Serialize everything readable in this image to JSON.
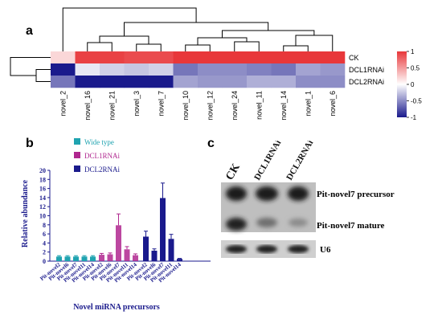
{
  "panels": {
    "a": "a",
    "b": "b",
    "c": "c"
  },
  "heatmap": {
    "columns": [
      "novel_2",
      "novel_16",
      "novel_21",
      "novel_3",
      "novel_7",
      "novel_10",
      "novel_12",
      "novel_24",
      "novel_11",
      "novel_14",
      "novel_1",
      "novel_6"
    ],
    "rows": [
      "CK",
      "DCL1RNAi",
      "DCL2RNAi"
    ],
    "values": [
      [
        0.2,
        0.95,
        0.95,
        0.9,
        0.9,
        1.0,
        1.0,
        1.0,
        1.0,
        1.0,
        1.0,
        1.0
      ],
      [
        -1.0,
        -0.1,
        -0.2,
        -0.25,
        -0.2,
        -0.6,
        -0.5,
        -0.5,
        -0.55,
        -0.6,
        -0.4,
        -0.45
      ],
      [
        -0.6,
        -1.0,
        -1.0,
        -1.0,
        -1.0,
        -0.4,
        -0.45,
        -0.45,
        -0.35,
        -0.35,
        -0.5,
        -0.5
      ]
    ],
    "colorbar_ticks": [
      "1",
      "0.5",
      "0",
      "-0.5",
      "-1"
    ],
    "colors": {
      "high": "#e8373a",
      "mid": "#ffffff",
      "low": "#1a1a8c"
    }
  },
  "bar_chart": {
    "ylabel": "Relative abundance",
    "xlabel": "Novel miRNA precursors",
    "yticks": [
      "0",
      "2",
      "4",
      "6",
      "8",
      "10",
      "12",
      "14",
      "16",
      "18",
      "20"
    ],
    "legend": [
      "Wide type",
      "DCL1RNAi",
      "DCL2RNAi"
    ],
    "colors": [
      "#1fa3b0",
      "#b0278f",
      "#1a1a8c"
    ]
  },
  "chart_data": {
    "type": "bar",
    "title": "",
    "xlabel": "Novel miRNA precursors",
    "ylabel": "Relative abundance",
    "ylim": [
      0,
      20
    ],
    "series": [
      {
        "name": "Wide type",
        "categories": [
          "Pit-novel2",
          "Pit-novel6",
          "Pit-novel7",
          "Pit-novel11",
          "Pit-novel14"
        ],
        "values": [
          1,
          1,
          1,
          1,
          1
        ],
        "errors": [
          0.2,
          0.2,
          0.2,
          0.2,
          0.2
        ]
      },
      {
        "name": "DCL1RNAi",
        "categories": [
          "Pit-novel2",
          "Pit-novel6",
          "Pit-novel7",
          "Pit-novel11",
          "Pit-novel14"
        ],
        "values": [
          1.4,
          1.5,
          7.9,
          2.6,
          1.3
        ],
        "errors": [
          0.3,
          0.3,
          2.5,
          0.6,
          0.3
        ]
      },
      {
        "name": "DCL2RNAi",
        "categories": [
          "Pit-novel2",
          "Pit-novel6",
          "Pit-novel7",
          "Pit-novel11",
          "Pit-novel14"
        ],
        "values": [
          5.4,
          2.3,
          13.9,
          4.9,
          0.5
        ],
        "errors": [
          1.2,
          0.4,
          3.3,
          1.0,
          0.1
        ]
      }
    ]
  },
  "blot": {
    "lanes": [
      "CK",
      "DCL1RNAi",
      "DCL2RNAi"
    ],
    "labels": {
      "precursor": "Pit-novel7 precursor",
      "mature": "Pit-novel7 mature",
      "control": "U6"
    }
  }
}
